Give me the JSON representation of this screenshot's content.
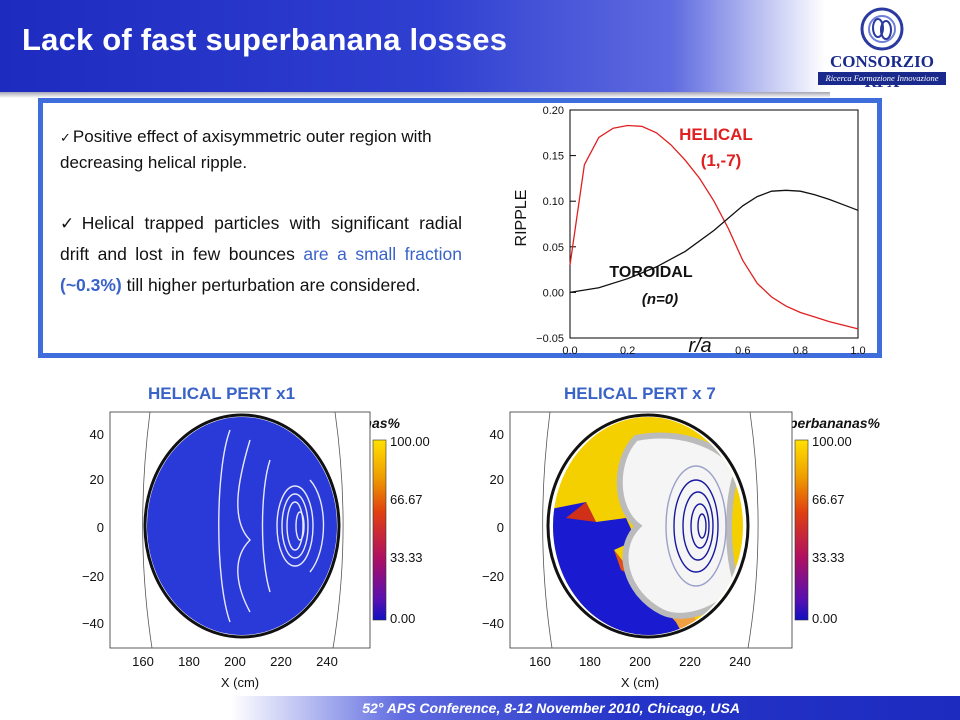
{
  "header": {
    "title": "Lack of fast superbanana losses",
    "logo_name": "CONSORZIO RFX",
    "logo_tagline": "Ricerca Formazione Innovazione"
  },
  "text_box": {
    "bullet1": "Positive effect of axisymmetric outer region with decreasing helical ripple.",
    "bullet2_a": "Helical trapped particles with significant radial drift and lost in few bounces ",
    "bullet2_b": "are a small fraction ",
    "bullet2_c": "(~0.3%)",
    "bullet2_d": " till higher perturbation are considered."
  },
  "chart_data": [
    {
      "type": "line",
      "xlabel": "r/a",
      "ylabel": "RIPPLE",
      "xlim": [
        0.0,
        1.0
      ],
      "ylim": [
        -0.05,
        0.2
      ],
      "xticks": [
        "0.0",
        "0.2",
        "0.4",
        "0.6",
        "0.8",
        "1.0"
      ],
      "yticks": [
        "−0.05",
        "0.00",
        "0.05",
        "0.10",
        "0.15",
        "0.20"
      ],
      "series": [
        {
          "name": "HELICAL (1,-7)",
          "color": "#e02020",
          "x": [
            0.0,
            0.05,
            0.1,
            0.15,
            0.2,
            0.25,
            0.3,
            0.35,
            0.4,
            0.45,
            0.5,
            0.55,
            0.6,
            0.65,
            0.7,
            0.75,
            0.8,
            0.85,
            0.9,
            0.95,
            1.0
          ],
          "y": [
            0.03,
            0.14,
            0.17,
            0.18,
            0.183,
            0.182,
            0.175,
            0.162,
            0.145,
            0.125,
            0.1,
            0.07,
            0.035,
            0.01,
            -0.005,
            -0.015,
            -0.022,
            -0.027,
            -0.032,
            -0.036,
            -0.04
          ]
        },
        {
          "name": "TOROIDAL (n=0)",
          "color": "#111111",
          "x": [
            0.0,
            0.1,
            0.2,
            0.3,
            0.4,
            0.5,
            0.6,
            0.65,
            0.7,
            0.75,
            0.8,
            0.85,
            0.9,
            0.95,
            1.0
          ],
          "y": [
            0.0,
            0.005,
            0.015,
            0.028,
            0.045,
            0.068,
            0.095,
            0.105,
            0.111,
            0.112,
            0.111,
            0.107,
            0.102,
            0.096,
            0.09
          ]
        }
      ],
      "annotations": [
        "HELICAL",
        "(1,-7)",
        "TOROIDAL",
        "(n=0)"
      ]
    }
  ],
  "panels": [
    {
      "title": "HELICAL PERT x1",
      "colorbar_label": "superbananas%",
      "colorbar_ticks": [
        "100.00",
        "66.67",
        "33.33",
        "0.00"
      ],
      "xticks": [
        "160",
        "180",
        "200",
        "220",
        "240"
      ],
      "yticks": [
        "40",
        "20",
        "0",
        "−20",
        "−40"
      ],
      "xlabel": "X (cm)"
    },
    {
      "title": "HELICAL PERT x 7",
      "colorbar_label": "superbananas%",
      "colorbar_ticks": [
        "100.00",
        "66.67",
        "33.33",
        "0.00"
      ],
      "xticks": [
        "160",
        "180",
        "200",
        "220",
        "240"
      ],
      "yticks": [
        "40",
        "20",
        "0",
        "−20",
        "−40"
      ],
      "xlabel": "X (cm)"
    }
  ],
  "footer": {
    "text": "52° APS Conference, 8-12 November 2010, Chicago, USA"
  },
  "colors": {
    "header_blue": "#1d2bbf",
    "box_border": "#3f6ddb",
    "accent_text": "#3a63c8",
    "helical_red": "#e02020"
  }
}
